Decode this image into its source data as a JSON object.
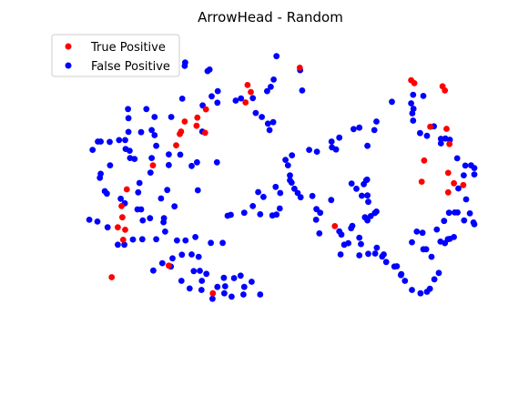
{
  "chart_data": {
    "type": "scatter",
    "title": "ArrowHead - Random",
    "xlabel": "",
    "ylabel": "",
    "axes_visible": false,
    "grid": false,
    "legend_placement": "top-left",
    "xlim": [
      0,
      100
    ],
    "ylim": [
      0,
      100
    ],
    "series": [
      {
        "name": "True Positive",
        "color": "#ff0000",
        "points": [
          [
            57.2,
            92.7
          ],
          [
            44.4,
            87.0
          ],
          [
            45.2,
            84.7
          ],
          [
            43.9,
            81.3
          ],
          [
            34.2,
            79.0
          ],
          [
            32.1,
            76.3
          ],
          [
            29.0,
            75.0
          ],
          [
            31.9,
            73.6
          ],
          [
            28.1,
            71.7
          ],
          [
            27.8,
            70.9
          ],
          [
            34.0,
            71.3
          ],
          [
            26.9,
            67.2
          ],
          [
            21.2,
            60.6
          ],
          [
            14.8,
            52.7
          ],
          [
            13.5,
            47.2
          ],
          [
            13.7,
            43.5
          ],
          [
            14.4,
            39.4
          ],
          [
            12.6,
            40.2
          ],
          [
            13.9,
            36.1
          ],
          [
            25.1,
            27.6
          ],
          [
            11.1,
            23.8
          ],
          [
            35.9,
            18.5
          ],
          [
            65.8,
            40.6
          ],
          [
            85.3,
            87.6
          ],
          [
            84.5,
            88.6
          ],
          [
            92.2,
            86.6
          ],
          [
            92.8,
            85.2
          ],
          [
            89.2,
            73.3
          ],
          [
            93.2,
            72.6
          ],
          [
            93.9,
            67.6
          ],
          [
            87.7,
            62.2
          ],
          [
            93.6,
            58.1
          ],
          [
            95.0,
            54.7
          ],
          [
            87.1,
            55.2
          ],
          [
            97.3,
            54.1
          ],
          [
            93.6,
            51.7
          ]
        ]
      },
      {
        "name": "False Positive",
        "color": "#0000ff",
        "points": [
          [
            51.5,
            96.5
          ],
          [
            50.8,
            88.8
          ],
          [
            50.1,
            86.4
          ],
          [
            49.2,
            85.0
          ],
          [
            57.3,
            91.9
          ],
          [
            57.8,
            85.2
          ],
          [
            37.1,
            85.0
          ],
          [
            28.4,
            82.5
          ],
          [
            35.6,
            83.3
          ],
          [
            37.0,
            81.2
          ],
          [
            41.5,
            81.9
          ],
          [
            45.7,
            82.7
          ],
          [
            33.4,
            80.3
          ],
          [
            15.1,
            79.1
          ],
          [
            19.6,
            79.1
          ],
          [
            15.2,
            76.1
          ],
          [
            21.6,
            76.5
          ],
          [
            25.7,
            76.5
          ],
          [
            15.2,
            71.6
          ],
          [
            18.3,
            71.5
          ],
          [
            20.9,
            72.2
          ],
          [
            21.6,
            70.5
          ],
          [
            33.3,
            71.7
          ],
          [
            7.7,
            68.4
          ],
          [
            8.4,
            68.4
          ],
          [
            10.6,
            68.3
          ],
          [
            12.9,
            68.9
          ],
          [
            14.4,
            68.9
          ],
          [
            22.0,
            67.0
          ],
          [
            14.5,
            66.0
          ],
          [
            15.5,
            65.4
          ],
          [
            6.4,
            65.7
          ],
          [
            16.7,
            62.7
          ],
          [
            25.1,
            64.2
          ],
          [
            27.9,
            64.1
          ],
          [
            32.0,
            61.6
          ],
          [
            36.9,
            61.6
          ],
          [
            20.6,
            58.2
          ],
          [
            15.6,
            63.0
          ],
          [
            20.9,
            63.0
          ],
          [
            25.1,
            60.7
          ],
          [
            30.7,
            60.4
          ],
          [
            10.7,
            60.6
          ],
          [
            8.4,
            57.8
          ],
          [
            8.2,
            56.5
          ],
          [
            9.4,
            52.1
          ],
          [
            9.9,
            51.3
          ],
          [
            24.7,
            52.5
          ],
          [
            13.3,
            49.6
          ],
          [
            14.3,
            48.1
          ],
          [
            17.9,
            54.8
          ],
          [
            17.6,
            51.7
          ],
          [
            23.2,
            49.7
          ],
          [
            32.2,
            52.4
          ],
          [
            26.5,
            47.1
          ],
          [
            17.4,
            46.1
          ],
          [
            18.3,
            46.1
          ],
          [
            18.7,
            42.5
          ],
          [
            5.6,
            42.7
          ],
          [
            7.6,
            42.1
          ],
          [
            10.1,
            40.2
          ],
          [
            20.5,
            43.2
          ],
          [
            23.8,
            41.9
          ],
          [
            23.9,
            43.2
          ],
          [
            24.2,
            38.8
          ],
          [
            18.6,
            36.3
          ],
          [
            16.3,
            36.2
          ],
          [
            12.6,
            34.5
          ],
          [
            14.2,
            34.5
          ],
          [
            22.0,
            36.3
          ],
          [
            27.1,
            35.9
          ],
          [
            29.2,
            35.9
          ],
          [
            31.6,
            37.0
          ],
          [
            35.4,
            35.1
          ],
          [
            38.3,
            35.1
          ],
          [
            28.3,
            31.2
          ],
          [
            30.7,
            31.3
          ],
          [
            26.0,
            30.0
          ],
          [
            32.4,
            30.5
          ],
          [
            25.6,
            27.3
          ],
          [
            21.3,
            26.0
          ],
          [
            23.5,
            28.4
          ],
          [
            28.2,
            22.6
          ],
          [
            31.2,
            25.8
          ],
          [
            32.7,
            25.9
          ],
          [
            34.3,
            24.9
          ],
          [
            38.6,
            23.6
          ],
          [
            41.1,
            23.5
          ],
          [
            42.7,
            24.3
          ],
          [
            37.0,
            20.6
          ],
          [
            38.9,
            20.8
          ],
          [
            43.6,
            20.6
          ],
          [
            45.4,
            22.3
          ],
          [
            47.5,
            18.1
          ],
          [
            43.4,
            18.1
          ],
          [
            40.5,
            17.4
          ],
          [
            38.7,
            18.5
          ],
          [
            35.8,
            16.7
          ],
          [
            33.1,
            19.6
          ],
          [
            30.2,
            20.1
          ],
          [
            33.2,
            22.6
          ],
          [
            39.5,
            44.0
          ],
          [
            40.3,
            44.3
          ],
          [
            43.6,
            45.0
          ],
          [
            45.7,
            47.2
          ],
          [
            47.5,
            44.5
          ],
          [
            50.5,
            44.1
          ],
          [
            51.5,
            44.4
          ],
          [
            52.3,
            46.4
          ],
          [
            48.3,
            50.2
          ],
          [
            47.0,
            51.8
          ],
          [
            51.3,
            53.5
          ],
          [
            52.4,
            51.5
          ],
          [
            56.7,
            51.5
          ],
          [
            60.3,
            50.5
          ],
          [
            61.3,
            46.2
          ],
          [
            62.2,
            45.0
          ],
          [
            61.2,
            42.7
          ],
          [
            62.0,
            38.2
          ],
          [
            66.9,
            38.9
          ],
          [
            67.4,
            37.8
          ],
          [
            68.1,
            34.5
          ],
          [
            69.1,
            35.0
          ],
          [
            67.2,
            31.3
          ],
          [
            71.8,
            36.8
          ],
          [
            72.2,
            34.7
          ],
          [
            71.8,
            31.0
          ],
          [
            74.0,
            31.5
          ],
          [
            76.1,
            33.5
          ],
          [
            77.4,
            30.6
          ],
          [
            77.8,
            31.3
          ],
          [
            75.7,
            31.6
          ],
          [
            78.4,
            28.8
          ],
          [
            80.4,
            27.3
          ],
          [
            81.0,
            27.4
          ],
          [
            82.0,
            24.5
          ],
          [
            82.1,
            24.8
          ],
          [
            83.0,
            22.6
          ],
          [
            84.7,
            19.6
          ],
          [
            86.8,
            18.5
          ],
          [
            88.4,
            19.0
          ],
          [
            89.1,
            20.0
          ],
          [
            90.2,
            23.1
          ],
          [
            91.3,
            25.2
          ],
          [
            85.9,
            38.8
          ],
          [
            87.3,
            38.4
          ],
          [
            84.7,
            35.3
          ],
          [
            87.5,
            33.0
          ],
          [
            88.2,
            33.0
          ],
          [
            89.5,
            30.5
          ],
          [
            91.7,
            35.5
          ],
          [
            92.8,
            35.0
          ],
          [
            93.5,
            36.3
          ],
          [
            94.0,
            36.4
          ],
          [
            95.0,
            37.0
          ],
          [
            90.8,
            39.5
          ],
          [
            92.6,
            42.3
          ],
          [
            93.8,
            45.0
          ],
          [
            95.2,
            45.1
          ],
          [
            95.9,
            45.1
          ],
          [
            97.5,
            42.5
          ],
          [
            98.9,
            44.8
          ],
          [
            99.8,
            41.8
          ],
          [
            100.0,
            41.2
          ],
          [
            98.0,
            49.4
          ],
          [
            96.1,
            53.0
          ],
          [
            97.4,
            57.3
          ],
          [
            97.8,
            60.5
          ],
          [
            99.2,
            60.6
          ],
          [
            100.0,
            59.7
          ],
          [
            100.0,
            57.6
          ],
          [
            95.8,
            62.9
          ],
          [
            91.8,
            67.8
          ],
          [
            92.9,
            69.4
          ],
          [
            91.8,
            69.3
          ],
          [
            94.0,
            69.0
          ],
          [
            90.1,
            73.4
          ],
          [
            86.7,
            71.2
          ],
          [
            88.4,
            70.3
          ],
          [
            85.0,
            75.3
          ],
          [
            84.8,
            77.7
          ],
          [
            85.1,
            79.2
          ],
          [
            87.5,
            83.4
          ],
          [
            84.5,
            81.0
          ],
          [
            85.0,
            83.8
          ],
          [
            79.8,
            81.5
          ],
          [
            76.0,
            75.0
          ],
          [
            75.5,
            72.2
          ],
          [
            73.8,
            67.0
          ],
          [
            70.4,
            72.5
          ],
          [
            71.8,
            73.0
          ],
          [
            66.9,
            69.7
          ],
          [
            65.0,
            68.4
          ],
          [
            65.1,
            66.5
          ],
          [
            66.1,
            65.8
          ],
          [
            61.4,
            65.1
          ],
          [
            59.5,
            65.7
          ],
          [
            55.3,
            63.9
          ],
          [
            53.7,
            62.4
          ],
          [
            54.3,
            60.6
          ],
          [
            54.8,
            57.3
          ],
          [
            54.8,
            55.7
          ],
          [
            55.2,
            54.9
          ],
          [
            55.9,
            52.9
          ],
          [
            57.4,
            50.1
          ],
          [
            64.9,
            49.2
          ],
          [
            69.9,
            54.6
          ],
          [
            73.5,
            55.7
          ],
          [
            73.7,
            55.9
          ],
          [
            72.9,
            54.4
          ],
          [
            71.1,
            52.9
          ],
          [
            72.4,
            50.6
          ],
          [
            73.8,
            50.7
          ],
          [
            74.0,
            48.6
          ],
          [
            76.0,
            45.4
          ],
          [
            75.6,
            44.9
          ],
          [
            74.6,
            43.9
          ],
          [
            73.2,
            43.5
          ],
          [
            73.8,
            42.5
          ],
          [
            70.1,
            40.7
          ],
          [
            69.8,
            39.9
          ],
          [
            49.8,
            72.2
          ],
          [
            49.4,
            74.3
          ],
          [
            50.7,
            74.8
          ],
          [
            47.9,
            76.5
          ],
          [
            46.4,
            77.8
          ],
          [
            42.8,
            82.6
          ],
          [
            35.1,
            92.1
          ],
          [
            34.6,
            91.6
          ],
          [
            29.0,
            93.3
          ],
          [
            29.1,
            94.4
          ]
        ]
      }
    ]
  }
}
